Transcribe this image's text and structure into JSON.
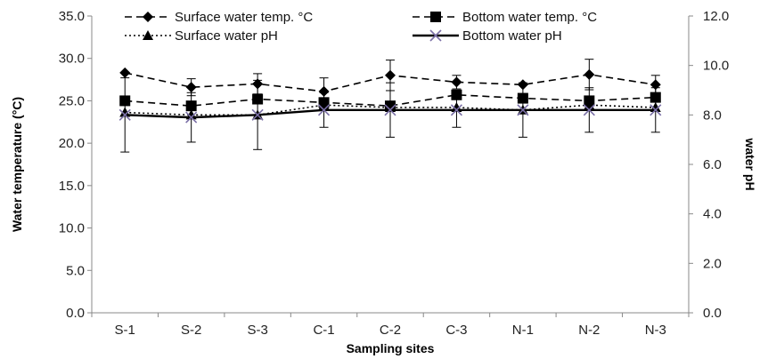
{
  "chart_data": {
    "type": "line",
    "categories": [
      "S-1",
      "S-2",
      "S-3",
      "C-1",
      "C-2",
      "C-3",
      "N-1",
      "N-2",
      "N-3"
    ],
    "xlabel": "Sampling sites",
    "ylabel_left": "Water temperature (°C)",
    "ylabel_right": "water pH",
    "ylim_left": [
      0,
      35
    ],
    "ylim_right": [
      0,
      12
    ],
    "yticks_left": [
      "0.0",
      "5.0",
      "10.0",
      "15.0",
      "20.0",
      "25.0",
      "30.0",
      "35.0"
    ],
    "yticks_right": [
      "0.0",
      "2.0",
      "4.0",
      "6.0",
      "8.0",
      "10.0",
      "12.0"
    ],
    "grid": false,
    "legend_position": "top",
    "series": [
      {
        "name": "Surface water temp. °C",
        "axis": "left",
        "line": "dashed",
        "marker": "diamond",
        "values": [
          28.3,
          26.6,
          27.0,
          26.1,
          28.0,
          27.2,
          26.9,
          28.1,
          26.9
        ],
        "error": [
          0,
          1.0,
          1.2,
          1.6,
          1.8,
          0.8,
          0,
          1.8,
          1.1
        ]
      },
      {
        "name": "Bottom water temp. °C",
        "axis": "left",
        "line": "dashed",
        "marker": "square",
        "values": [
          25.0,
          24.4,
          25.2,
          24.8,
          24.4,
          25.7,
          25.3,
          25.0,
          25.4
        ],
        "error": [
          0,
          0,
          0,
          0,
          0,
          0,
          0,
          0,
          0
        ]
      },
      {
        "name": "Surface water pH",
        "axis": "right",
        "line": "dotted",
        "marker": "triangle",
        "values": [
          8.1,
          8.0,
          8.0,
          8.4,
          8.3,
          8.3,
          8.2,
          8.4,
          8.3
        ],
        "error": [
          0,
          0,
          0,
          0,
          0,
          0,
          0,
          0,
          0
        ]
      },
      {
        "name": "Bottom water pH",
        "axis": "right",
        "line": "solid",
        "marker": "x",
        "values": [
          8.0,
          7.9,
          8.0,
          8.2,
          8.2,
          8.2,
          8.2,
          8.2,
          8.2
        ],
        "error": [
          1.5,
          1.0,
          1.4,
          0.7,
          1.1,
          0.7,
          1.1,
          0.9,
          0.9
        ]
      }
    ]
  }
}
